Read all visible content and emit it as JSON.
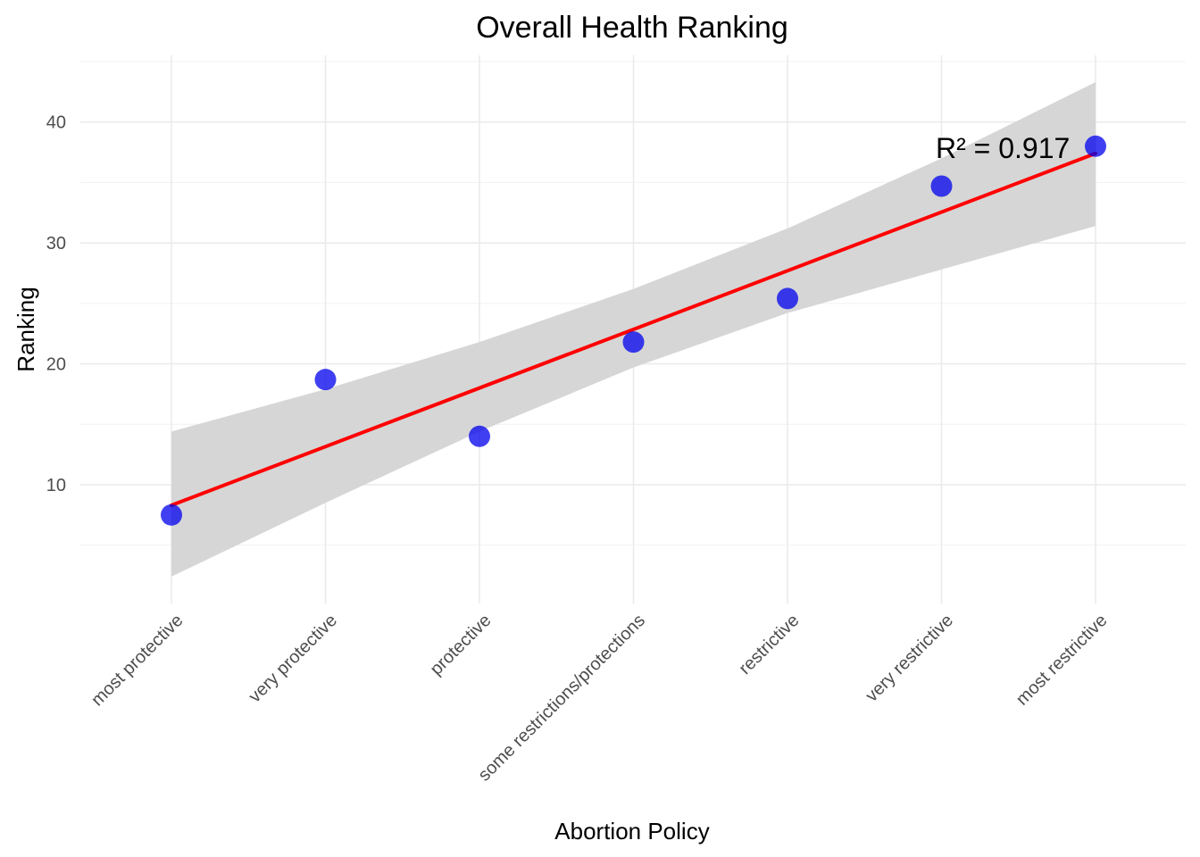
{
  "chart_data": {
    "type": "scatter",
    "title": "Overall Health Ranking",
    "xlabel": "Abortion Policy",
    "ylabel": "Ranking",
    "categories": [
      "most protective",
      "very protective",
      "protective",
      "some restrictions/protections",
      "restrictive",
      "very restrictive",
      "most restrictive"
    ],
    "values": [
      7.5,
      18.7,
      14.0,
      21.8,
      25.4,
      34.7,
      38.0
    ],
    "ylim": [
      0.5,
      45
    ],
    "yticks": [
      10,
      20,
      30,
      40
    ],
    "trend_line": {
      "method": "linear",
      "color": "#ff0000",
      "start": 8.3,
      "end": 37.4,
      "confidence_band": {
        "lower": [
          2.4,
          8.5,
          14.4,
          19.7,
          24.2,
          27.8,
          31.4
        ],
        "upper": [
          14.4,
          17.9,
          21.8,
          26.2,
          31.2,
          37.0,
          43.3
        ],
        "color": "#d4d4d4"
      }
    },
    "annotation": "R² = 0.917",
    "point_color": "#0000ee",
    "grid": true,
    "legend": "none"
  }
}
